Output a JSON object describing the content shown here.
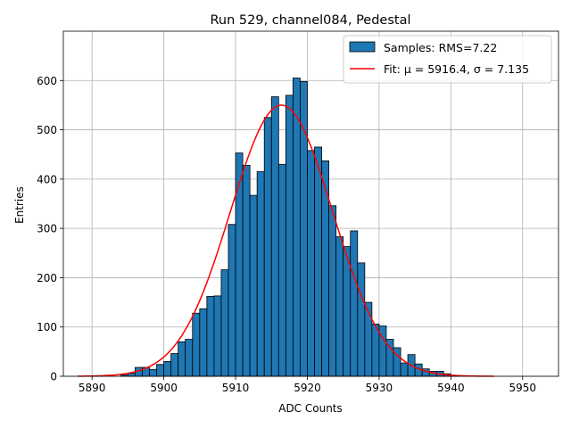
{
  "chart_data": {
    "type": "bar",
    "title": "Run 529, channel084, Pedestal",
    "xlabel": "ADC Counts",
    "ylabel": "Entries",
    "xlim": [
      5886.0,
      5955.0
    ],
    "ylim": [
      0,
      700
    ],
    "xticks": [
      5890,
      5900,
      5910,
      5920,
      5930,
      5940,
      5950
    ],
    "yticks": [
      0,
      100,
      200,
      300,
      400,
      500,
      600
    ],
    "grid": true,
    "legend_position": "top-right",
    "bin_width": 1,
    "histogram": {
      "name": "Samples: RMS=7.22",
      "color": "#1f77b4",
      "edge_color": "#000000",
      "bin_starts": [
        5894,
        5895,
        5896,
        5897,
        5898,
        5899,
        5900,
        5901,
        5902,
        5903,
        5904,
        5905,
        5906,
        5907,
        5908,
        5909,
        5910,
        5911,
        5912,
        5913,
        5914,
        5915,
        5916,
        5917,
        5918,
        5919,
        5920,
        5921,
        5922,
        5923,
        5924,
        5925,
        5926,
        5927,
        5928,
        5929,
        5930,
        5931,
        5932,
        5933,
        5934,
        5935,
        5936,
        5937,
        5938,
        5939,
        5940
      ],
      "counts": [
        3,
        6,
        18,
        18,
        14,
        24,
        30,
        46,
        70,
        75,
        128,
        137,
        162,
        163,
        216,
        308,
        453,
        428,
        367,
        415,
        525,
        567,
        430,
        570,
        605,
        598,
        458,
        465,
        437,
        346,
        283,
        263,
        295,
        230,
        150,
        106,
        102,
        75,
        58,
        27,
        44,
        25,
        15,
        10,
        10,
        5,
        2
      ]
    },
    "fit": {
      "name": "Fit: μ = 5916.4, σ = 7.135",
      "color": "#ff0000",
      "mu": 5916.4,
      "sigma": 7.135,
      "amplitude": 550,
      "x_range": [
        5888,
        5946
      ]
    }
  }
}
